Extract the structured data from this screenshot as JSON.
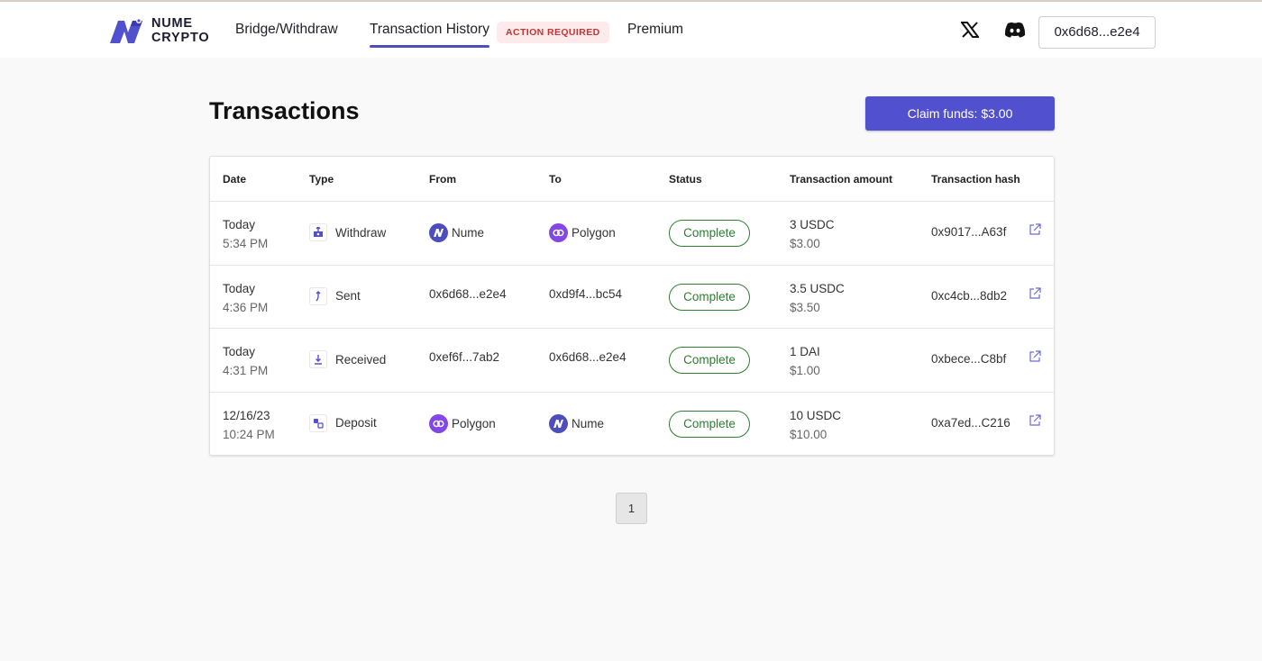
{
  "brand": {
    "line1": "NUME",
    "line2": "CRYPTO",
    "accent": "#5150cf"
  },
  "nav": {
    "items": [
      {
        "label": "Bridge/Withdraw"
      },
      {
        "label": "Transaction History"
      },
      {
        "label": "Premium"
      }
    ],
    "active": "Transaction History",
    "badge": "ACTION REQUIRED"
  },
  "header": {
    "wallet": "0x6d68...e2e4",
    "icons": [
      "x-logo-icon",
      "discord-icon"
    ]
  },
  "page": {
    "title": "Transactions",
    "claim_label": "Claim funds: $3.00"
  },
  "table": {
    "columns": [
      "Date",
      "Type",
      "From",
      "To",
      "Status",
      "Transaction amount",
      "Transaction hash"
    ],
    "rows": [
      {
        "date": "Today",
        "time": "5:34 PM",
        "type": "Withdraw",
        "type_icon": "withdraw-icon",
        "from": "Nume",
        "from_icon": "nume-icon",
        "to": "Polygon",
        "to_icon": "polygon-icon",
        "status": "Complete",
        "amount": "3 USDC",
        "usd": "$3.00",
        "hash": "0x9017...A63f"
      },
      {
        "date": "Today",
        "time": "4:36 PM",
        "type": "Sent",
        "type_icon": "sent-icon",
        "from": "0x6d68...e2e4",
        "from_icon": "",
        "to": "0xd9f4...bc54",
        "to_icon": "",
        "status": "Complete",
        "amount": "3.5 USDC",
        "usd": "$3.50",
        "hash": "0xc4cb...8db2"
      },
      {
        "date": "Today",
        "time": "4:31 PM",
        "type": "Received",
        "type_icon": "received-icon",
        "from": "0xef6f...7ab2",
        "from_icon": "",
        "to": "0x6d68...e2e4",
        "to_icon": "",
        "status": "Complete",
        "amount": "1 DAI",
        "usd": "$1.00",
        "hash": "0xbece...C8bf"
      },
      {
        "date": "12/16/23",
        "time": "10:24 PM",
        "type": "Deposit",
        "type_icon": "deposit-icon",
        "from": "Polygon",
        "from_icon": "polygon-icon",
        "to": "Nume",
        "to_icon": "nume-icon",
        "status": "Complete",
        "amount": "10 USDC",
        "usd": "$10.00",
        "hash": "0xa7ed...C216"
      }
    ]
  },
  "pagination": {
    "current": "1"
  }
}
